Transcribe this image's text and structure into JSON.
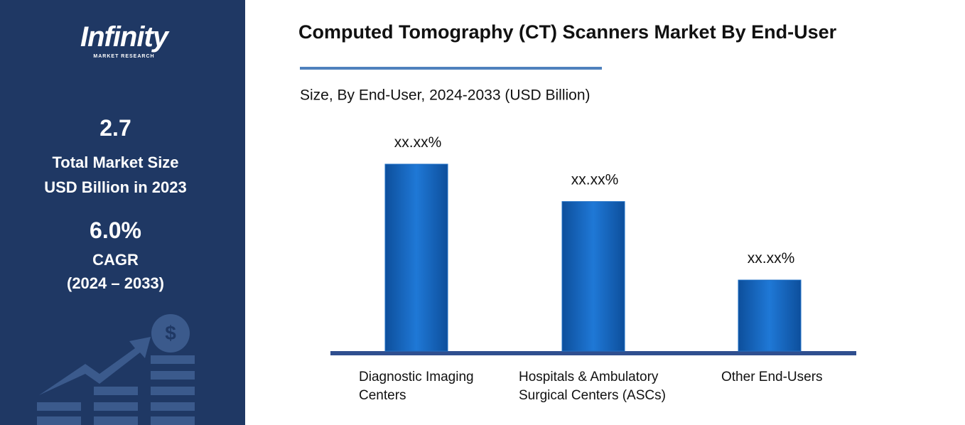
{
  "panel": {
    "logo": "Infinity",
    "logo_sub": "MARKET RESEARCH",
    "market_size": "2.7",
    "market_size_label_1": "Total Market Size",
    "market_size_label_2": "USD Billion in 2023",
    "cagr": "6.0%",
    "cagr_label": "CAGR",
    "cagr_period": "(2024 – 2033)"
  },
  "chart_data": {
    "type": "bar",
    "title": "Computed Tomography (CT) Scanners Market By End-User",
    "subtitle": "Size, By End-User, 2024-2033 (USD Billion)",
    "categories": [
      "Diagnostic Imaging Centers",
      "Hospitals & Ambulatory Surgical Centers (ASCs)",
      "Other End-Users"
    ],
    "values": [
      10,
      8,
      3.8
    ],
    "value_labels": [
      "xx.xx%",
      "xx.xx%",
      "xx.xx%"
    ],
    "color": "#1f6fc5"
  }
}
